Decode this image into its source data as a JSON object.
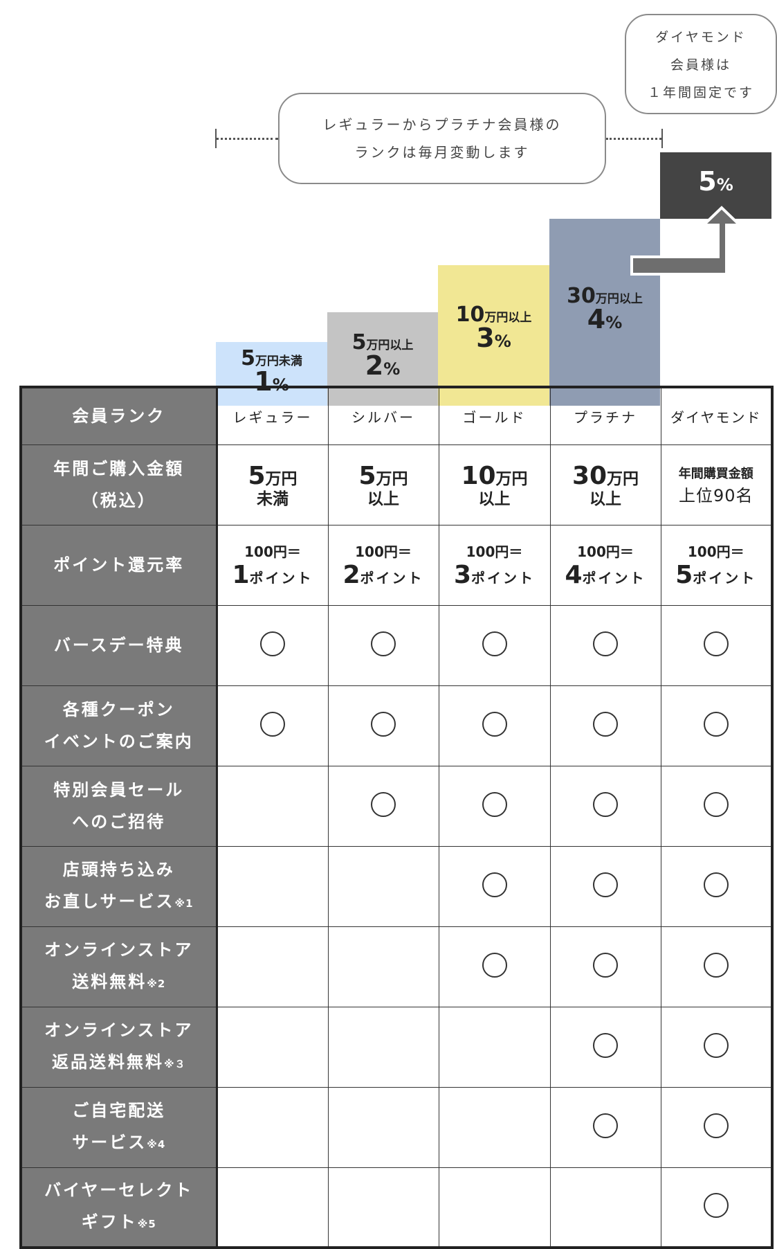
{
  "notes": {
    "monthly_l1": "レギュラーからプラチナ会員様の",
    "monthly_l2": "ランクは毎月変動します",
    "diamond_l1": "ダイヤモンド",
    "diamond_l2": "会員様は",
    "diamond_l3": "１年間固定です"
  },
  "colors": {
    "regular": "#cde3fb",
    "silver": "#c4c4c4",
    "gold": "#f1e794",
    "platinum": "#8f9cb2",
    "diamond": "#444444",
    "header_bg": "#7a7a7a"
  },
  "bars": [
    {
      "threshold": "5",
      "unit": "万円未満",
      "rate_num": "1",
      "rate_unit": "%"
    },
    {
      "threshold": "5",
      "unit": "万円以上",
      "rate_num": "2",
      "rate_unit": "%"
    },
    {
      "threshold": "10",
      "unit": "万円以上",
      "rate_num": "3",
      "rate_unit": "%"
    },
    {
      "threshold": "30",
      "unit": "万円以上",
      "rate_num": "4",
      "rate_unit": "%"
    },
    {
      "rate_num": "5",
      "rate_unit": "%"
    }
  ],
  "table": {
    "headers": {
      "rank": "会員ランク",
      "amount_l1": "年間ご購入金額",
      "amount_l2": "（税込）",
      "points": "ポイント還元率",
      "birthday": "バースデー特典",
      "coupon_l1": "各種クーポン",
      "coupon_l2": "イベントのご案内",
      "sale_l1": "特別会員セール",
      "sale_l2": "へのご招待",
      "repair_l1": "店頭持ち込み",
      "repair_l2": "お直しサービス",
      "repair_note": "※1",
      "shipping_l1": "オンラインストア",
      "shipping_l2": "送料無料",
      "shipping_note": "※2",
      "returns_l1": "オンラインストア",
      "returns_l2": "返品送料無料",
      "returns_note": "※３",
      "delivery_l1": "ご自宅配送",
      "delivery_l2": "サービス",
      "delivery_note": "※4",
      "gift_l1": "バイヤーセレクト",
      "gift_l2": "ギフト",
      "gift_note": "※5"
    },
    "ranks": [
      "レギュラー",
      "シルバー",
      "ゴールド",
      "プラチナ",
      "ダイヤモンド"
    ],
    "amounts": [
      {
        "num": "5",
        "unit": "万円",
        "sub": "未満"
      },
      {
        "num": "5",
        "unit": "万円",
        "sub": "以上"
      },
      {
        "num": "10",
        "unit": "万円",
        "sub": "以上"
      },
      {
        "num": "30",
        "unit": "万円",
        "sub": "以上"
      },
      {
        "l1": "年間購買金額",
        "l2": "上位90名"
      }
    ],
    "points": [
      {
        "top": "100円＝",
        "num": "1",
        "unit": "ポイント"
      },
      {
        "top": "100円＝",
        "num": "2",
        "unit": "ポイント"
      },
      {
        "top": "100円＝",
        "num": "3",
        "unit": "ポイント"
      },
      {
        "top": "100円＝",
        "num": "4",
        "unit": "ポイント"
      },
      {
        "top": "100円＝",
        "num": "5",
        "unit": "ポイント"
      }
    ],
    "benefit_icon": "circle-mark-icon",
    "benefits": {
      "birthday": [
        true,
        true,
        true,
        true,
        true
      ],
      "coupon": [
        true,
        true,
        true,
        true,
        true
      ],
      "sale": [
        false,
        true,
        true,
        true,
        true
      ],
      "repair": [
        false,
        false,
        true,
        true,
        true
      ],
      "shipping": [
        false,
        false,
        true,
        true,
        true
      ],
      "returns": [
        false,
        false,
        false,
        true,
        true
      ],
      "delivery": [
        false,
        false,
        false,
        true,
        true
      ],
      "gift": [
        false,
        false,
        false,
        false,
        true
      ]
    }
  }
}
